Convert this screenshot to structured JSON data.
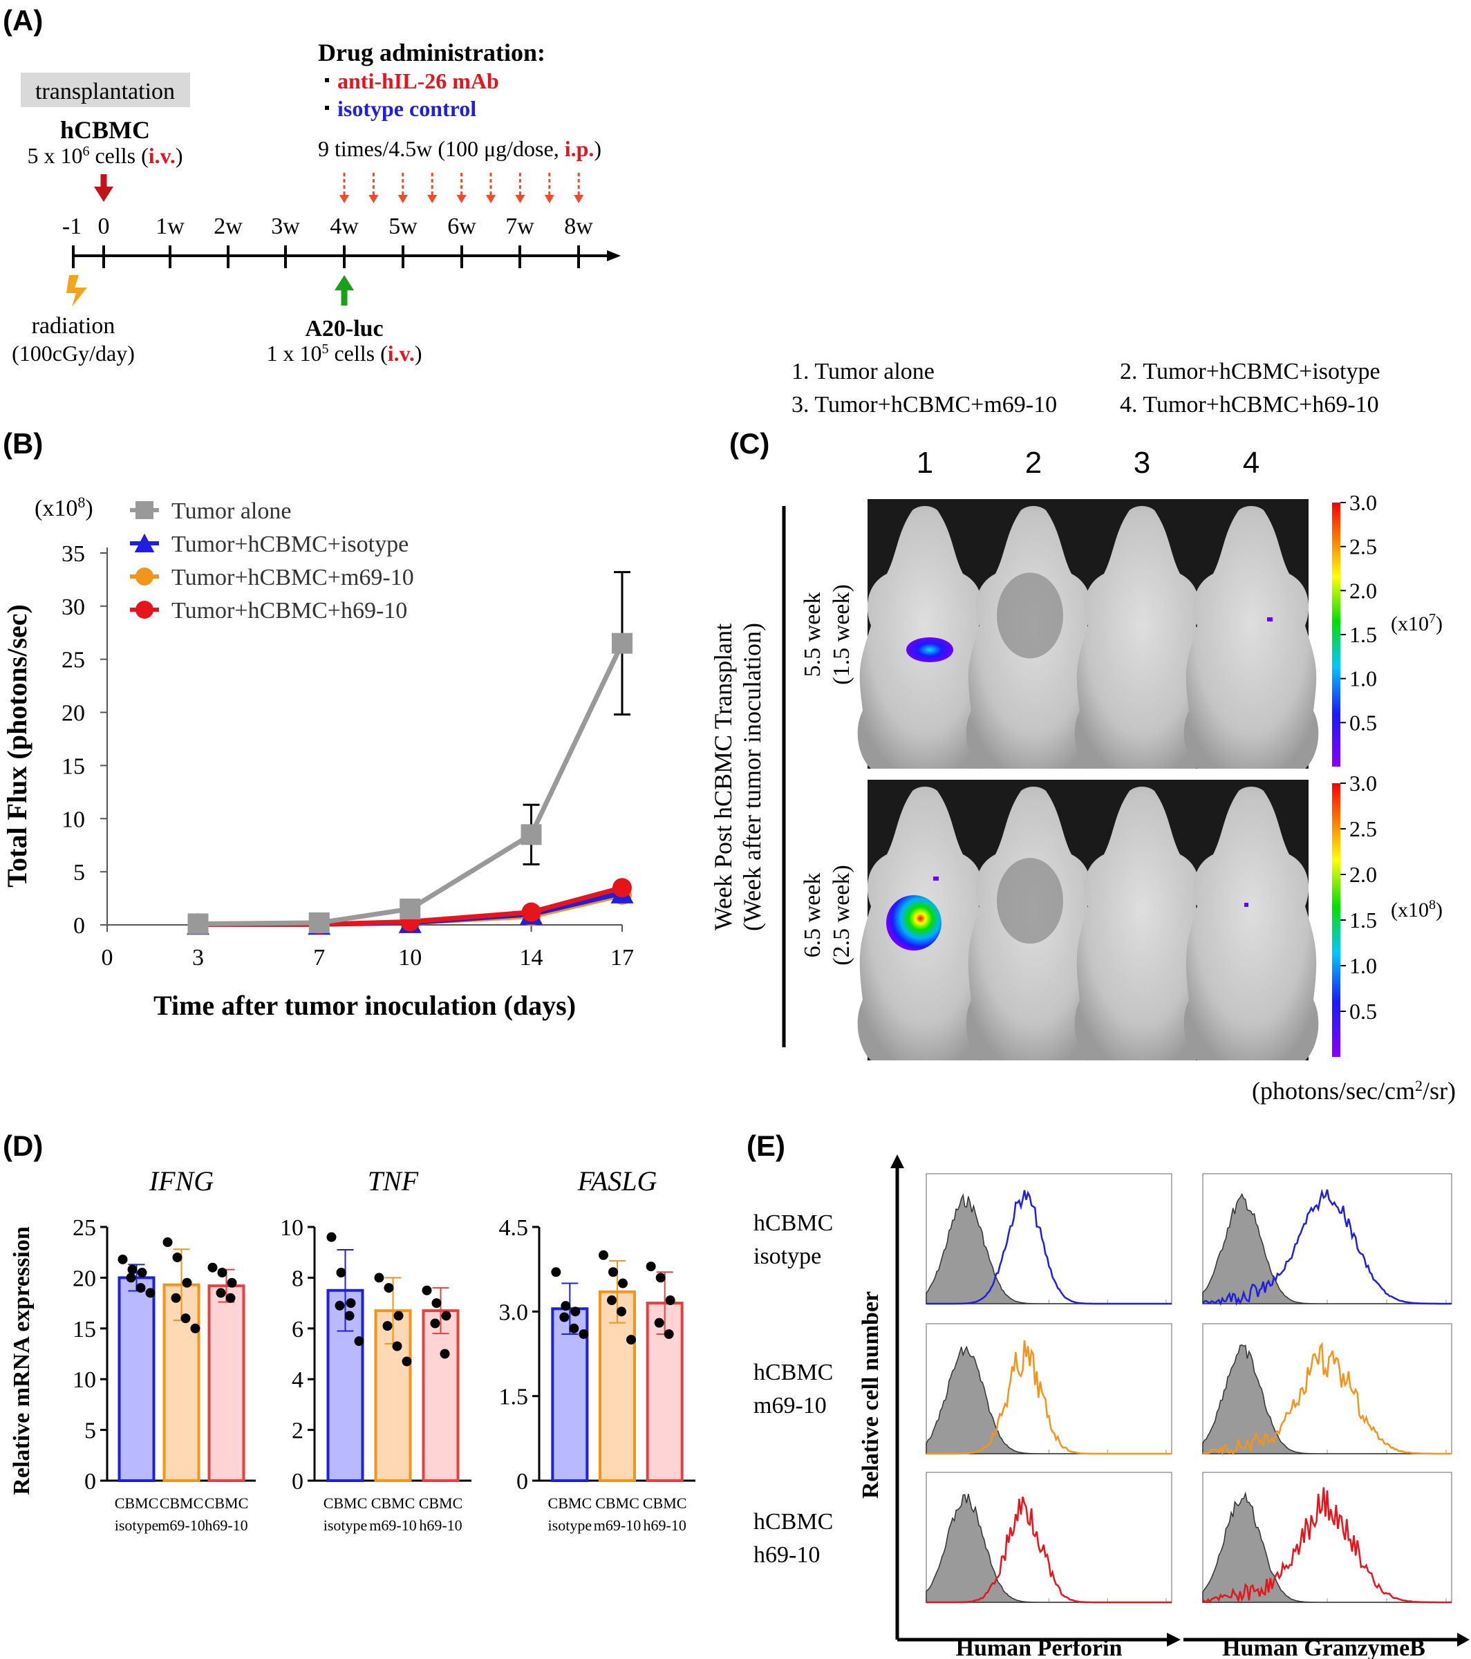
{
  "panel_a": {
    "letter": "(A)",
    "transplantation": "transplantation",
    "hcbmc": "hCBMC",
    "hcbmc_dose_pre": "5 x 10",
    "hcbmc_dose_exp": "6",
    "hcbmc_dose_mid": " cells (",
    "hcbmc_route": "i.v.",
    "hcbmc_dose_end": ")",
    "drug_title": "Drug administration",
    "drug_colon": ":",
    "drug_1": "anti-hIL-26 mAb",
    "drug_2": "isotype control",
    "schedule_pre": "9 times/4.5w (100 μg/dose, ",
    "schedule_route": "i.p.",
    "schedule_end": ")",
    "timeline_labels": [
      "-1",
      "0",
      "1w",
      "2w",
      "3w",
      "4w",
      "5w",
      "6w",
      "7w",
      "8w"
    ],
    "radiation": "radiation",
    "radiation_dose": "(100cGy/day)",
    "a20": "A20-luc",
    "a20_dose_pre": "1 x 10",
    "a20_dose_exp": "5",
    "a20_dose_mid": " cells (",
    "a20_route": "i.v.",
    "a20_dose_end": ")",
    "colors": {
      "red": "#e8141b",
      "blue": "#1f1fe0",
      "dark_red": "#c0141b",
      "green": "#1aa11a",
      "orange": "#f3a41b",
      "dashed": "#f04a2a"
    }
  },
  "legend_c": {
    "items": [
      "1. Tumor alone",
      "2. Tumor+hCBMC+isotype",
      "3. Tumor+hCBMC+m69-10",
      "4. Tumor+hCBMC+h69-10"
    ]
  },
  "panel_b": {
    "letter": "(B)",
    "multiplier_pre": "(x10",
    "multiplier_exp": "8",
    "multiplier_end": ")"
  },
  "panel_c": {
    "letter": "(C)",
    "columns": [
      "1",
      "2",
      "3",
      "4"
    ],
    "ylabel_1": "Week Post hCBMC Transplant",
    "ylabel_2": "(Week after tumor inoculation)",
    "row_labels": [
      {
        "line1": "5.5 week",
        "line2": "(1.5 week)"
      },
      {
        "line1": "6.5 week",
        "line2": "(2.5 week)"
      }
    ],
    "scale_ticks": [
      "3.0",
      "2.5",
      "2.0",
      "1.5",
      "1.0",
      "0.5"
    ],
    "scale_units": [
      {
        "pre": "(x10",
        "exp": "7",
        "end": ")"
      },
      {
        "pre": "(x10",
        "exp": "8",
        "end": ")"
      }
    ],
    "units_pre": "(photons/sec/cm",
    "units_exp": "2",
    "units_end": "/sr)"
  },
  "panel_d": {
    "letter": "(D)"
  },
  "panel_e": {
    "letter": "(E)",
    "row_labels": [
      {
        "line1": "hCBMC",
        "line2": "isotype"
      },
      {
        "line1": "hCBMC",
        "line2": "m69-10"
      },
      {
        "line1": "hCBMC",
        "line2": "h69-10"
      }
    ],
    "ylabel": "Relative cell number",
    "xlabels": [
      "Human Perforin",
      "Human GranzymeB"
    ],
    "colors": [
      "#1f1fe0",
      "#f3941b",
      "#e8141b"
    ]
  },
  "chart_data": [
    {
      "id": "B",
      "type": "line",
      "x": [
        3,
        7,
        10,
        14,
        17
      ],
      "xticks": [
        "0",
        "3",
        "7",
        "10",
        "14",
        "17"
      ],
      "xlim": [
        0,
        17
      ],
      "ylim": [
        0,
        35
      ],
      "yticks": [
        "0",
        "5",
        "10",
        "15",
        "20",
        "25",
        "30",
        "35"
      ],
      "xlabel": "Time after tumor inoculation (days)",
      "ylabel": "Total Flux (photons/sec)",
      "legend_position": "top-left",
      "series": [
        {
          "name": "Tumor alone",
          "color": "#999999",
          "marker": "square",
          "values": [
            0.1,
            0.2,
            1.5,
            8.5,
            26.5
          ],
          "errors": [
            0,
            0,
            0,
            2.8,
            6.7
          ]
        },
        {
          "name": "Tumor+hCBMC+isotype",
          "color": "#1f1fe0",
          "marker": "triangle",
          "values": [
            0.05,
            0.05,
            0.2,
            1.0,
            3.0
          ],
          "errors": [
            0,
            0,
            0,
            0,
            0
          ]
        },
        {
          "name": "Tumor+hCBMC+m69-10",
          "color": "#f3941b",
          "marker": "circle",
          "values": [
            0.05,
            0.05,
            0.2,
            0.8,
            2.8
          ],
          "errors": [
            0,
            0,
            0,
            0,
            0
          ]
        },
        {
          "name": "Tumor+hCBMC+h69-10",
          "color": "#e8141b",
          "marker": "circle",
          "values": [
            0.05,
            0.05,
            0.3,
            1.2,
            3.5
          ],
          "errors": [
            0,
            0,
            0,
            0,
            0
          ]
        }
      ]
    },
    {
      "id": "D-IFNG",
      "type": "bar",
      "title": "IFNG",
      "ylabel": "Relative mRNA expression",
      "ylim": [
        0,
        25
      ],
      "yticks": [
        "0",
        "5",
        "10",
        "15",
        "20",
        "25"
      ],
      "categories": [
        [
          "CBMC",
          "isotype"
        ],
        [
          "CBMC",
          "m69-10"
        ],
        [
          "CBMC",
          "h69-10"
        ]
      ],
      "values": [
        20.0,
        19.3,
        19.2
      ],
      "errors": [
        1.3,
        3.5,
        1.6
      ],
      "points": [
        [
          21.8,
          20.8,
          20.5,
          20.0,
          19.0,
          18.5
        ],
        [
          23.5,
          22.0,
          19.5,
          18.0,
          16.0,
          15.0
        ],
        [
          21.0,
          20.5,
          19.5,
          18.5,
          18.0
        ]
      ],
      "fill_colors": [
        "#b9b9ff",
        "#ffd9b3",
        "#ffd4d4"
      ],
      "edge_colors": [
        "#1f1fe0",
        "#f3941b",
        "#e84040"
      ]
    },
    {
      "id": "D-TNF",
      "type": "bar",
      "title": "TNF",
      "ylim": [
        0,
        10
      ],
      "yticks": [
        "0",
        "2",
        "4",
        "6",
        "8",
        "10"
      ],
      "categories": [
        [
          "CBMC",
          "isotype"
        ],
        [
          "CBMC",
          "m69-10"
        ],
        [
          "CBMC",
          "h69-10"
        ]
      ],
      "values": [
        7.5,
        6.7,
        6.7
      ],
      "errors": [
        1.6,
        1.3,
        0.9
      ],
      "points": [
        [
          9.6,
          8.2,
          7.0,
          6.9,
          6.5,
          5.5
        ],
        [
          8.0,
          7.6,
          6.5,
          6.1,
          5.3,
          4.7
        ],
        [
          7.5,
          7.0,
          6.5,
          6.2,
          5.0
        ]
      ],
      "fill_colors": [
        "#b9b9ff",
        "#ffd9b3",
        "#ffd4d4"
      ],
      "edge_colors": [
        "#1f1fe0",
        "#f3941b",
        "#e84040"
      ]
    },
    {
      "id": "D-FASLG",
      "type": "bar",
      "title": "FASLG",
      "ylim": [
        0,
        4.5
      ],
      "yticks": [
        "0",
        "1.5",
        "3.0",
        "4.5"
      ],
      "categories": [
        [
          "CBMC",
          "isotype"
        ],
        [
          "CBMC",
          "m69-10"
        ],
        [
          "CBMC",
          "h69-10"
        ]
      ],
      "values": [
        3.05,
        3.35,
        3.15
      ],
      "errors": [
        0.45,
        0.55,
        0.55
      ],
      "points": [
        [
          3.7,
          3.1,
          3.0,
          2.9,
          2.7,
          2.6
        ],
        [
          4.0,
          3.7,
          3.5,
          3.2,
          3.0,
          2.5
        ],
        [
          3.8,
          3.6,
          3.2,
          2.8,
          2.6
        ]
      ],
      "fill_colors": [
        "#b9b9ff",
        "#ffd9b3",
        "#ffd4d4"
      ],
      "edge_colors": [
        "#1f1fe0",
        "#f3941b",
        "#e84040"
      ]
    }
  ]
}
